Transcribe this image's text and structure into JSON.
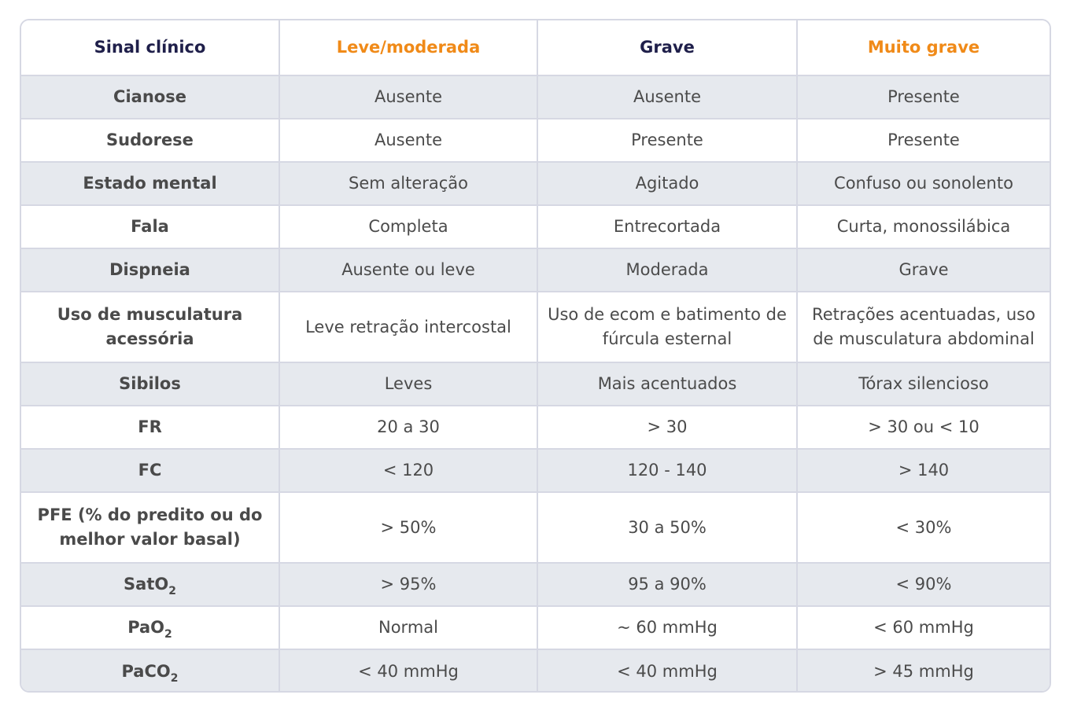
{
  "header": {
    "col0": "Sinal clínico",
    "col1": "Leve/moderada",
    "col2": "Grave",
    "col3": "Muito grave"
  },
  "colors": {
    "header_dark": "#1f1f4a",
    "header_orange": "#f08a18",
    "row_shade": "#e6e9ee",
    "border": "#d6d8e3"
  },
  "rows": [
    {
      "label": "Cianose",
      "leve": "Ausente",
      "grave": "Ausente",
      "muito_grave": "Presente"
    },
    {
      "label": "Sudorese",
      "leve": "Ausente",
      "grave": "Presente",
      "muito_grave": "Presente"
    },
    {
      "label": "Estado mental",
      "leve": "Sem alteração",
      "grave": "Agitado",
      "muito_grave": "Confuso ou sonolento"
    },
    {
      "label": "Fala",
      "leve": "Completa",
      "grave": "Entrecortada",
      "muito_grave": "Curta, monossilábica"
    },
    {
      "label": "Dispneia",
      "leve": "Ausente ou leve",
      "grave": "Moderada",
      "muito_grave": "Grave"
    },
    {
      "label": "Uso de musculatura acessória",
      "leve": "Leve retração intercostal",
      "grave": "Uso de ecom e batimento de fúrcula esternal",
      "muito_grave": "Retrações acentuadas, uso de musculatura abdominal"
    },
    {
      "label": "Sibilos",
      "leve": "Leves",
      "grave": "Mais acentuados",
      "muito_grave": "Tórax silencioso"
    },
    {
      "label": "FR",
      "leve": "20 a 30",
      "grave": "> 30",
      "muito_grave": "> 30 ou < 10"
    },
    {
      "label": "FC",
      "leve": "< 120",
      "grave": "120 - 140",
      "muito_grave": "> 140"
    },
    {
      "label": "PFE (% do predito ou do melhor valor basal)",
      "leve": "> 50%",
      "grave": "30 a 50%",
      "muito_grave": "< 30%"
    },
    {
      "label_main": "SatO",
      "label_sub": "2",
      "leve": "> 95%",
      "grave": "95 a 90%",
      "muito_grave": "< 90%"
    },
    {
      "label_main": "PaO",
      "label_sub": "2",
      "leve": "Normal",
      "grave": "~ 60 mmHg",
      "muito_grave": "< 60 mmHg"
    },
    {
      "label_main": "PaCO",
      "label_sub": "2",
      "leve": "< 40 mmHg",
      "grave": "< 40 mmHg",
      "muito_grave": "> 45 mmHg"
    }
  ]
}
